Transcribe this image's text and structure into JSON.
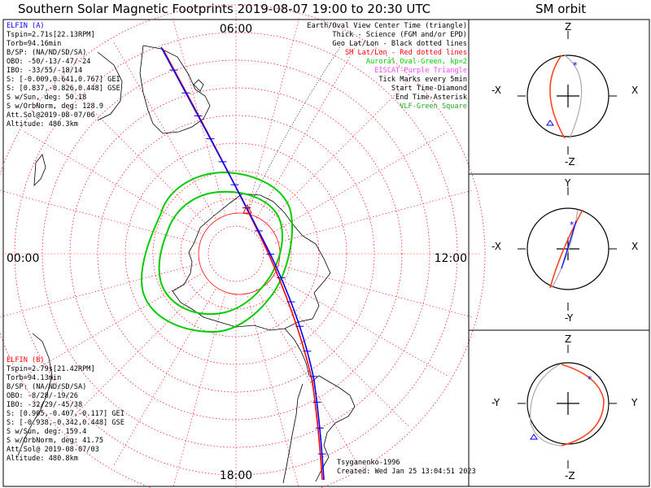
{
  "title": "Southern Solar Magnetic Footprints 2019-08-07 19:00 to 20:30 UTC",
  "sm_title": "SM orbit",
  "colors": {
    "elfin_a": "#0000ff",
    "elfin_b": "#ff0000",
    "auroral_oval": "#00cc00",
    "geo_grid": "#000000",
    "sm_grid": "#ff0000",
    "eiscat": "#ff44ff",
    "vlf": "#22aa22",
    "model_line": "#aaaaaa"
  },
  "map": {
    "time_labels": {
      "top": "06:00",
      "left": "00:00",
      "right": "12:00",
      "bottom": "18:00"
    }
  },
  "elfin_a": {
    "name": "ELFIN (A)",
    "lines": [
      "Tspin=2.71s[22.13RPM]",
      "Torb=94.16min",
      "B/SP: (NA/ND/SD/SA)",
      "OBO: -50/-13/-47/-24",
      "IBO: -33/55/-18/14",
      "S: [-0.009,0.641,0.767] GEI",
      "S: [0.837,-0.826,0.448] GSE",
      "S w/Sun, deg: 50.18",
      "S w/OrbNorm, deg: 128.9",
      "Att.Sol@2019-08-07/06",
      "Altitude: 480.3km"
    ]
  },
  "elfin_b": {
    "name": "ELFIN (B)",
    "lines": [
      "Tspin=2.79s[21.42RPM]",
      "Torb=94.13min",
      "B/SP: (NA/ND/SD/SA)",
      "OBO: -8/28/-19/26",
      "IBO: -32/29/-45/38",
      "S: [0.905,-0.407,-0.117] GEI",
      "S: [-0.938,-0.342,0.448] GSE",
      "S w/Sun, deg: 159.4",
      "S w/OrbNorm, deg: 41.75",
      "Att.Sol@ 2019-08-07/03",
      "Altitude: 480.8km"
    ]
  },
  "legend": [
    {
      "text": "Earth/Oval View Center Time (triangle)",
      "color": "#000000"
    },
    {
      "text": "Thick - Science (FGM and/or EPD)",
      "color": "#000000"
    },
    {
      "text": "Geo Lat/Lon - Black dotted lines",
      "color": "#000000"
    },
    {
      "text": "SM Lat/Lon - Red dotted lines",
      "color": "#ff0000"
    },
    {
      "text": "Auroral Oval-Green, kp=2",
      "color": "#00cc00"
    },
    {
      "text": "EISCAT-Purple Triangle",
      "color": "#ff44ff"
    },
    {
      "text": "Tick Marks every 5min",
      "color": "#000000"
    },
    {
      "text": "Start Time-Diamond",
      "color": "#000000"
    },
    {
      "text": "End Time-Asterisk",
      "color": "#000000"
    },
    {
      "text": "VLF-Green Square",
      "color": "#22aa22"
    }
  ],
  "footer": {
    "model": "Tsyganenko-1996",
    "created": "Created: Wed Jan 25 13:04:51 2023"
  },
  "sm_panels": [
    {
      "top": "Z",
      "bottom": "-Z",
      "left": "-X",
      "right": "X"
    },
    {
      "top": "Y",
      "bottom": "-Y",
      "left": "-X",
      "right": "X"
    },
    {
      "top": "Z",
      "bottom": "-Z",
      "left": "-Y",
      "right": "Y"
    }
  ],
  "chart_data": {
    "type": "polar-map",
    "title": "Southern Solar Magnetic Footprints 2019-08-07 19:00 to 20:30 UTC",
    "series": [
      {
        "name": "ELFIN (A)",
        "color": "#0000ff"
      },
      {
        "name": "ELFIN (B)",
        "color": "#ff0000"
      }
    ]
  }
}
